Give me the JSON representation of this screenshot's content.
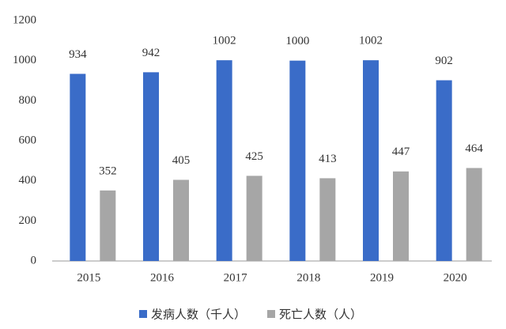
{
  "chart_data": {
    "type": "bar",
    "categories": [
      "2015",
      "2016",
      "2017",
      "2018",
      "2019",
      "2020"
    ],
    "series": [
      {
        "name": "发病人数（千人）",
        "color": "#3a6cc8",
        "values": [
          934,
          942,
          1002,
          1000,
          1002,
          902
        ]
      },
      {
        "name": "死亡人数（人）",
        "color": "#a6a6a6",
        "values": [
          352,
          405,
          425,
          413,
          447,
          464
        ]
      }
    ],
    "ylim": [
      0,
      1200
    ],
    "yticks": [
      0,
      200,
      400,
      600,
      800,
      1000,
      1200
    ],
    "grid": false,
    "legend": "bottom"
  }
}
